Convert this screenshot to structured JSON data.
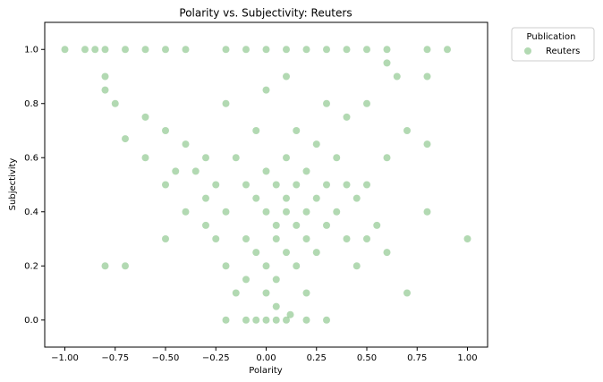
{
  "chart_data": {
    "type": "scatter",
    "title": "Polarity vs. Subjectivity: Reuters",
    "x_label": "Polarity",
    "y_label": "Subjectivity",
    "legend_title": "Publication",
    "legend": "upper right outside",
    "x": [
      -1,
      -0.9,
      -0.85,
      -0.8,
      -0.7,
      -0.6,
      -0.5,
      -0.4,
      -0.2,
      -0.1,
      0,
      0.1,
      0.2,
      0.3,
      0.4,
      0.5,
      0.6,
      0.8,
      0.9,
      -0.2,
      -0.1,
      -0.05,
      0,
      0.05,
      0.1,
      0.2,
      0.3,
      -0.8,
      -0.8,
      -0.75,
      -0.7,
      -0.6,
      -0.6,
      -0.5,
      -0.5,
      -0.5,
      -0.8,
      -0.7,
      -0.4,
      -0.4,
      -0.35,
      -0.3,
      -0.3,
      -0.3,
      -0.25,
      -0.25,
      -0.2,
      -0.2,
      -0.2,
      -0.15,
      -0.15,
      -0.1,
      -0.1,
      -0.1,
      -0.05,
      -0.05,
      -0.05,
      0,
      0,
      0,
      0,
      0,
      0.05,
      0.05,
      0.05,
      0.05,
      0.1,
      0.1,
      0.1,
      0.1,
      0.1,
      0.15,
      0.15,
      0.15,
      0.15,
      0.2,
      0.2,
      0.2,
      0.2,
      0.25,
      0.25,
      0.25,
      0.3,
      0.3,
      0.3,
      0.35,
      0.35,
      0.4,
      0.4,
      0.4,
      0.45,
      0.5,
      0.5,
      0.5,
      0.55,
      0.6,
      0.6,
      0.6,
      0.65,
      0.7,
      0.7,
      0.8,
      0.8,
      0.8,
      1,
      0.45,
      -0.45,
      0.05,
      0.12
    ],
    "series": [
      {
        "name": "Reuters",
        "color": "green",
        "opacity": 0.3,
        "values": [
          1,
          1,
          1,
          1,
          1,
          1,
          1,
          1,
          1,
          1,
          1,
          1,
          1,
          1,
          1,
          1,
          1,
          1,
          1,
          0,
          0,
          0,
          0,
          0,
          0,
          0,
          0,
          0.9,
          0.85,
          0.8,
          0.67,
          0.75,
          0.6,
          0.7,
          0.5,
          0.3,
          0.2,
          0.2,
          0.65,
          0.4,
          0.55,
          0.6,
          0.45,
          0.35,
          0.3,
          0.5,
          0.8,
          0.4,
          0.2,
          0.1,
          0.6,
          0.5,
          0.3,
          0.15,
          0.45,
          0.25,
          0.7,
          0.4,
          0.2,
          0.1,
          0.55,
          0.85,
          0.3,
          0.5,
          0.35,
          0.15,
          0.45,
          0.25,
          0.6,
          0.4,
          0.9,
          0.35,
          0.5,
          0.2,
          0.7,
          0.4,
          0.3,
          0.55,
          0.1,
          0.45,
          0.65,
          0.25,
          0.5,
          0.35,
          0.8,
          0.4,
          0.6,
          0.5,
          0.3,
          0.75,
          0.45,
          0.5,
          0.3,
          0.8,
          0.35,
          0.95,
          0.6,
          0.25,
          0.9,
          0.7,
          0.1,
          0.9,
          0.4,
          0.65,
          0.3,
          0.2,
          0.55,
          0.05,
          0.02
        ]
      }
    ],
    "xlim": [
      -1.1,
      1.1
    ],
    "ylim": [
      -0.1,
      1.1
    ],
    "xticks": [
      {
        "value": -1,
        "label": "−1.00"
      },
      {
        "value": -0.75,
        "label": "−0.75"
      },
      {
        "value": -0.5,
        "label": "−0.50"
      },
      {
        "value": -0.25,
        "label": "−0.25"
      },
      {
        "value": 0,
        "label": "0.00"
      },
      {
        "value": 0.25,
        "label": "0.25"
      },
      {
        "value": 0.5,
        "label": "0.50"
      },
      {
        "value": 0.75,
        "label": "0.75"
      },
      {
        "value": 1,
        "label": "1.00"
      }
    ],
    "yticks": [
      {
        "value": 0,
        "label": "0.0"
      },
      0.2,
      0.4,
      0.6,
      0.8,
      {
        "value": 1,
        "label": "1.0"
      }
    ],
    "grid": false
  }
}
